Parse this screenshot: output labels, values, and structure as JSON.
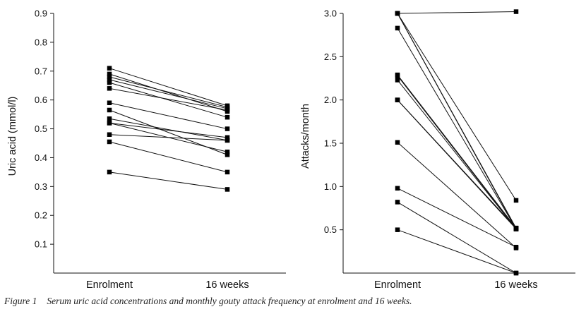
{
  "caption": {
    "label": "Figure 1",
    "text": "Serum uric acid concentrations and monthly gouty attack frequency at enrolment and 16 weeks."
  },
  "chart_data": [
    {
      "type": "line",
      "categories": [
        "Enrolment",
        "16 weeks"
      ],
      "ylabel": "Uric acid (mmol/l)",
      "ylim": [
        0,
        0.9
      ],
      "yticks": [
        "0.1",
        "0.2",
        "0.3",
        "0.4",
        "0.5",
        "0.6",
        "0.7",
        "0.8",
        "0.9"
      ],
      "pairs": [
        [
          0.71,
          0.58
        ],
        [
          0.69,
          0.56
        ],
        [
          0.68,
          0.575
        ],
        [
          0.67,
          0.57
        ],
        [
          0.66,
          0.54
        ],
        [
          0.64,
          0.565
        ],
        [
          0.59,
          0.5
        ],
        [
          0.565,
          0.41
        ],
        [
          0.535,
          0.46
        ],
        [
          0.52,
          0.47
        ],
        [
          0.52,
          0.42
        ],
        [
          0.48,
          0.46
        ],
        [
          0.455,
          0.35
        ],
        [
          0.35,
          0.29
        ]
      ],
      "line_color": "#111111"
    },
    {
      "type": "line",
      "categories": [
        "Enrolment",
        "16 weeks"
      ],
      "ylabel": "Attacks/month",
      "ylim": [
        0,
        3.0
      ],
      "yticks": [
        "0.5",
        "1.0",
        "1.5",
        "2.0",
        "2.5",
        "3.0"
      ],
      "pairs": [
        [
          3.0,
          3.02
        ],
        [
          3.0,
          0.84
        ],
        [
          3.0,
          0.52
        ],
        [
          3.0,
          0.51
        ],
        [
          2.83,
          0.51
        ],
        [
          2.29,
          0.52
        ],
        [
          2.28,
          0.51
        ],
        [
          2.23,
          0.51
        ],
        [
          2.0,
          0.52
        ],
        [
          2.0,
          0.51
        ],
        [
          2.0,
          0.52
        ],
        [
          1.51,
          0.29
        ],
        [
          0.98,
          0.3
        ],
        [
          0.82,
          0.0
        ],
        [
          0.5,
          0.0
        ]
      ],
      "line_color": "#111111"
    }
  ]
}
